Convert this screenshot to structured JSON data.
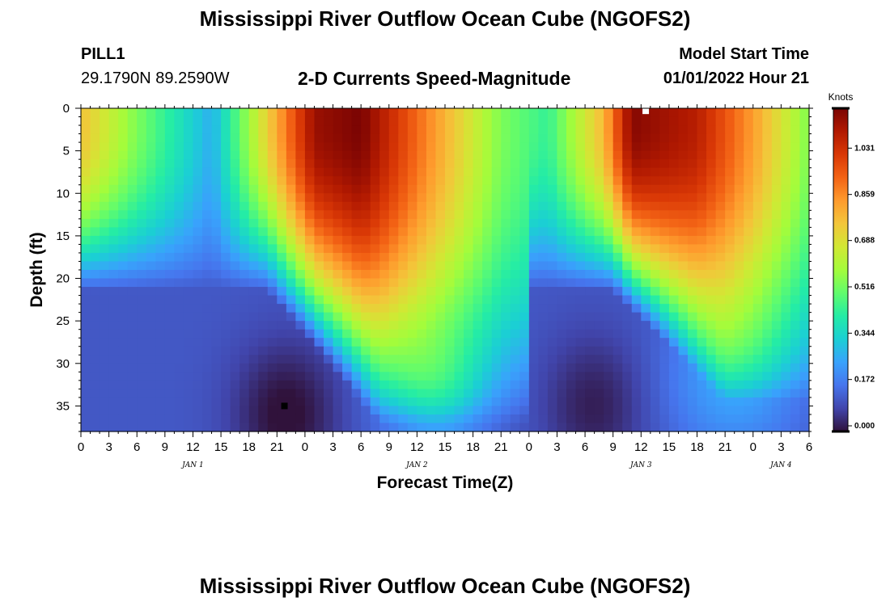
{
  "header": {
    "title": "Mississippi River Outflow Ocean Cube (NGOFS2)",
    "station": "PILL1",
    "coords": "29.1790N  89.2590W",
    "subtitle": "2-D Currents Speed-Magnitude",
    "start_label": "Model Start Time",
    "start_value": "01/01/2022 Hour 21"
  },
  "footer": {
    "title": "Mississippi River Outflow Ocean Cube (NGOFS2)"
  },
  "chart_data": {
    "type": "heatmap",
    "title": "2-D Currents Speed-Magnitude",
    "xlabel": "Forecast Time(Z)",
    "ylabel": "Depth (ft)",
    "x_ticks": [
      "0",
      "3",
      "6",
      "9",
      "12",
      "15",
      "18",
      "21",
      "0",
      "3",
      "6",
      "9",
      "12",
      "15",
      "18",
      "21",
      "0",
      "3",
      "6",
      "9",
      "12",
      "15",
      "18",
      "21",
      "0",
      "3",
      "6"
    ],
    "x_range_hours": [
      0,
      78
    ],
    "date_labels": [
      {
        "label": "JAN 1",
        "hour": 12
      },
      {
        "label": "JAN 2",
        "hour": 36
      },
      {
        "label": "JAN 3",
        "hour": 60
      },
      {
        "label": "JAN 4",
        "hour": 75
      }
    ],
    "y_ticks": [
      0,
      5,
      10,
      15,
      20,
      25,
      30,
      35
    ],
    "y_range_ft": [
      0,
      38
    ],
    "y_inverted": true,
    "colorbar": {
      "unit": "Knots",
      "ticks": [
        "1.031",
        "0.859",
        "0.688",
        "0.516",
        "0.344",
        "0.172",
        "0.000"
      ],
      "range": [
        0,
        1.2
      ]
    },
    "surface_speed_knots": [
      {
        "hour": 0,
        "speed": 0.78
      },
      {
        "hour": 6,
        "speed": 0.55
      },
      {
        "hour": 14,
        "speed": 0.28
      },
      {
        "hour": 20,
        "speed": 0.75
      },
      {
        "hour": 25,
        "speed": 1.15
      },
      {
        "hour": 30,
        "speed": 1.2
      },
      {
        "hour": 38,
        "speed": 0.85
      },
      {
        "hour": 45,
        "speed": 0.55
      },
      {
        "hour": 50,
        "speed": 0.45
      },
      {
        "hour": 56,
        "speed": 0.8
      },
      {
        "hour": 59,
        "speed": 1.18
      },
      {
        "hour": 66,
        "speed": 1.1
      },
      {
        "hour": 72,
        "speed": 0.85
      },
      {
        "hour": 78,
        "speed": 0.55
      }
    ],
    "markers": [
      {
        "hour": 60.5,
        "depth_ft": 0.3,
        "color": "#ffffff"
      },
      {
        "hour": 21.8,
        "depth_ft": 35,
        "color": "#000000"
      }
    ],
    "colors": {
      "scale": [
        "#30123b",
        "#4145ab",
        "#4675ed",
        "#39a2fc",
        "#1bcfd4",
        "#24eca6",
        "#61fc6c",
        "#a4fc3b",
        "#d1e834",
        "#f3c63a",
        "#fe9b2d",
        "#f36315",
        "#d93806",
        "#b11901",
        "#7a0403"
      ]
    }
  }
}
